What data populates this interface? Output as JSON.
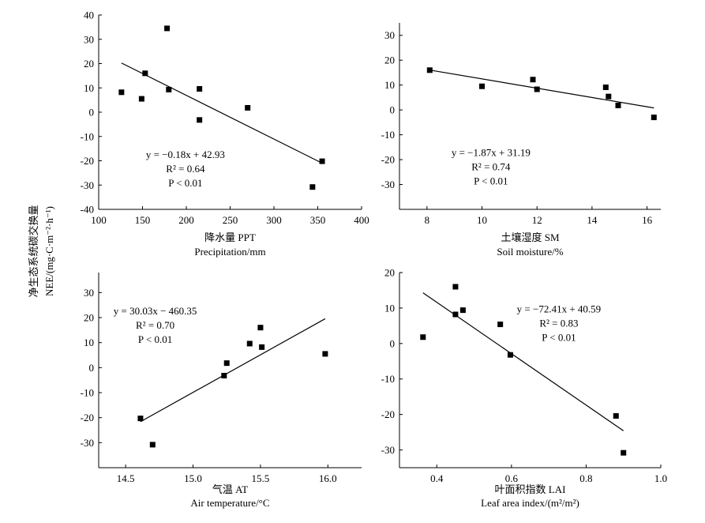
{
  "ylabel_shared": [
    "净生态系统碳交换量",
    "NEE/(mg·C·m⁻²·h⁻¹)"
  ],
  "chart_data": [
    {
      "type": "scatter",
      "id": "ppt",
      "xlabel_zh": "降水量 PPT",
      "xlabel_en": "Precipitation/mm",
      "xlim": [
        100,
        400
      ],
      "ylim": [
        -40,
        40
      ],
      "xticks": [
        100,
        150,
        200,
        250,
        300,
        350,
        400
      ],
      "yticks": [
        -40,
        -30,
        -20,
        -10,
        0,
        10,
        20,
        30,
        40
      ],
      "xtick_labels": [
        "100",
        "150",
        "200",
        "250",
        "300",
        "350",
        "400"
      ],
      "ytick_labels": [
        "-40",
        "-30",
        "-20",
        "-10",
        "0",
        "10",
        "20",
        "30",
        "40"
      ],
      "x": [
        126,
        149,
        153,
        178,
        180,
        215,
        215,
        270,
        344,
        355
      ],
      "y": [
        8.2,
        5.5,
        16,
        34.5,
        9.3,
        9.6,
        -3.2,
        1.8,
        -30.8,
        -20.2
      ],
      "fit": {
        "x": [
          126,
          355
        ],
        "y": [
          20.25,
          -20.97
        ]
      },
      "annotation": [
        "y = −0.18x + 42.93",
        "R² = 0.64",
        "P < 0.01"
      ]
    },
    {
      "type": "scatter",
      "id": "sm",
      "xlabel_zh": "土壤湿度 SM",
      "xlabel_en": "Soil moisture/%",
      "xlim": [
        7,
        16.5
      ],
      "ylim": [
        -40,
        35
      ],
      "xticks": [
        8,
        10,
        12,
        14,
        16
      ],
      "yticks": [
        -30,
        -20,
        -10,
        0,
        10,
        20,
        30
      ],
      "xtick_labels": [
        "8",
        "10",
        "12",
        "14",
        "16"
      ],
      "ytick_labels": [
        "-30",
        "-20",
        "-10",
        "0",
        "10",
        "20",
        "30"
      ],
      "x": [
        8.1,
        10.0,
        11.85,
        12.0,
        14.5,
        14.6,
        14.95,
        16.25
      ],
      "y": [
        16,
        9.5,
        12.2,
        8.3,
        9.1,
        5.4,
        1.8,
        -3.0
      ],
      "fit": {
        "x": [
          8.1,
          16.25
        ],
        "y": [
          16.04,
          0.8
        ]
      },
      "annotation": [
        "y = −1.87x + 31.19",
        "R² = 0.74",
        "P < 0.01"
      ]
    },
    {
      "type": "scatter",
      "id": "at",
      "xlabel_zh": "气温 AT",
      "xlabel_en": "Air temperature/°C",
      "xlim": [
        14.3,
        16.25
      ],
      "ylim": [
        -40,
        38
      ],
      "xticks": [
        14.5,
        15.0,
        15.5,
        16.0
      ],
      "yticks": [
        -30,
        -20,
        -10,
        0,
        10,
        20,
        30
      ],
      "xtick_labels": [
        "14.5",
        "15.0",
        "15.5",
        "16.0"
      ],
      "ytick_labels": [
        "-30",
        "-20",
        "-10",
        "0",
        "10",
        "20",
        "30"
      ],
      "x": [
        14.61,
        14.7,
        15.23,
        15.25,
        15.42,
        15.5,
        15.51,
        15.98
      ],
      "y": [
        -20.3,
        -30.8,
        -3.2,
        1.8,
        9.6,
        16,
        8.2,
        5.5
      ],
      "fit": {
        "x": [
          14.61,
          15.98
        ],
        "y": [
          -21.6,
          19.54
        ]
      },
      "annotation": [
        "y = 30.03x − 460.35",
        "R² = 0.70",
        "P <  0.01"
      ]
    },
    {
      "type": "scatter",
      "id": "lai",
      "xlabel_zh": "叶面积指数 LAI",
      "xlabel_en": "Leaf area index/(m²/m²)",
      "xlim": [
        0.3,
        1.0
      ],
      "ylim": [
        -35,
        20
      ],
      "xticks": [
        0.4,
        0.6,
        0.8,
        1.0
      ],
      "yticks": [
        -30,
        -20,
        -10,
        0,
        10,
        20
      ],
      "xtick_labels": [
        "0.4",
        "0.6",
        "0.8",
        "1.0"
      ],
      "ytick_labels": [
        "-30",
        "-20",
        "-10",
        "0",
        "10",
        "20"
      ],
      "x": [
        0.363,
        0.45,
        0.45,
        0.47,
        0.57,
        0.597,
        0.88,
        0.9
      ],
      "y": [
        1.8,
        16,
        8.2,
        9.4,
        5.4,
        -3.2,
        -20.4,
        -30.8
      ],
      "fit": {
        "x": [
          0.363,
          0.9
        ],
        "y": [
          14.3,
          -24.6
        ]
      },
      "annotation": [
        "y = −72.41x + 40.59",
        "R² = 0.83",
        "P < 0.01"
      ]
    }
  ]
}
